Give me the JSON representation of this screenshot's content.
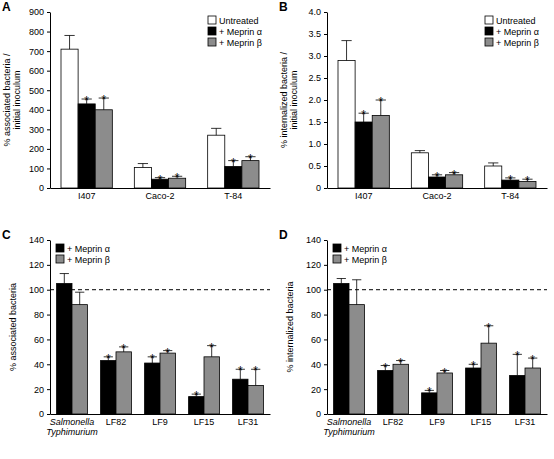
{
  "chart_data": [
    {
      "panel": "A",
      "type": "bar",
      "ylabel": "% associated bacteria / initial inoculum",
      "categories": [
        "I407",
        "Caco-2",
        "T-84"
      ],
      "series": [
        {
          "name": "Untreated",
          "color": "#ffffff",
          "values": [
            710,
            105,
            270
          ],
          "errors": [
            70,
            20,
            35
          ]
        },
        {
          "name": "+ Meprin α",
          "color": "#000000",
          "values": [
            430,
            45,
            110
          ],
          "errors": [
            25,
            8,
            30
          ],
          "significance": [
            "*",
            "*",
            "*"
          ]
        },
        {
          "name": "+ Meprin β",
          "color": "#8c8c8c",
          "values": [
            400,
            50,
            140
          ],
          "errors": [
            60,
            10,
            20
          ],
          "significance": [
            "*",
            "*",
            "*"
          ]
        }
      ],
      "ylim": [
        0,
        900
      ],
      "yticks": [
        0,
        100,
        200,
        300,
        400,
        500,
        600,
        700,
        800,
        900
      ],
      "legend": "upper right"
    },
    {
      "panel": "B",
      "type": "bar",
      "ylabel": "% internalized bacteria / initial inoculum",
      "categories": [
        "I407",
        "Caco-2",
        "T-84"
      ],
      "series": [
        {
          "name": "Untreated",
          "color": "#ffffff",
          "values": [
            2.9,
            0.8,
            0.5
          ],
          "errors": [
            0.45,
            0.05,
            0.07
          ]
        },
        {
          "name": "+ Meprin α",
          "color": "#000000",
          "values": [
            1.5,
            0.25,
            0.18
          ],
          "errors": [
            0.2,
            0.05,
            0.05
          ],
          "significance": [
            "*",
            "*",
            "*"
          ]
        },
        {
          "name": "+ Meprin β",
          "color": "#8c8c8c",
          "values": [
            1.65,
            0.3,
            0.15
          ],
          "errors": [
            0.35,
            0.05,
            0.05
          ],
          "significance": [
            "*",
            "*",
            "*"
          ]
        }
      ],
      "ylim": [
        0,
        4
      ],
      "yticks": [
        0,
        0.5,
        {
          "value": 1,
          "label": "1.0"
        },
        1.5,
        {
          "value": 2,
          "label": "2.0"
        },
        2.5,
        {
          "value": 3,
          "label": "3.0"
        },
        3.5,
        {
          "value": 4,
          "label": "4.0"
        }
      ],
      "legend": "upper right"
    },
    {
      "panel": "C",
      "type": "bar",
      "ylabel": "% associated bacteria",
      "categories": [
        "Salmonella Typhimurium",
        "LF82",
        "LF9",
        "LF15",
        "LF31"
      ],
      "series": [
        {
          "name": "+ Meprin α",
          "color": "#000000",
          "values": [
            105,
            43,
            41,
            14,
            28
          ],
          "errors": [
            8,
            3,
            5,
            2,
            8
          ],
          "significance": [
            null,
            "*",
            "*",
            "*",
            "*"
          ]
        },
        {
          "name": "+ Meprin β",
          "color": "#8c8c8c",
          "values": [
            88,
            50,
            49,
            46,
            23
          ],
          "errors": [
            10,
            4,
            2,
            9,
            13
          ],
          "significance": [
            null,
            "*",
            "*",
            "*",
            "*"
          ]
        }
      ],
      "reference_line": 100,
      "ylim": [
        0,
        140
      ],
      "yticks": [
        0,
        20,
        40,
        60,
        80,
        100,
        120,
        140
      ],
      "legend": "upper left"
    },
    {
      "panel": "D",
      "type": "bar",
      "ylabel": "% internalized bacteria",
      "categories": [
        "Salmonella Typhimurium",
        "LF82",
        "LF9",
        "LF15",
        "LF31"
      ],
      "series": [
        {
          "name": "+ Meprin α",
          "color": "#000000",
          "values": [
            105,
            35,
            17,
            37,
            31
          ],
          "errors": [
            4,
            4,
            2,
            3,
            17
          ],
          "significance": [
            null,
            "*",
            "*",
            "*",
            "*"
          ]
        },
        {
          "name": "+ Meprin β",
          "color": "#8c8c8c",
          "values": [
            88,
            40,
            33,
            57,
            37
          ],
          "errors": [
            20,
            3,
            2,
            14,
            8
          ],
          "significance": [
            null,
            "*",
            "*",
            "*",
            "*"
          ]
        }
      ],
      "reference_line": 100,
      "ylim": [
        0,
        140
      ],
      "yticks": [
        0,
        20,
        40,
        60,
        80,
        100,
        120,
        140
      ],
      "legend": "upper left"
    }
  ]
}
